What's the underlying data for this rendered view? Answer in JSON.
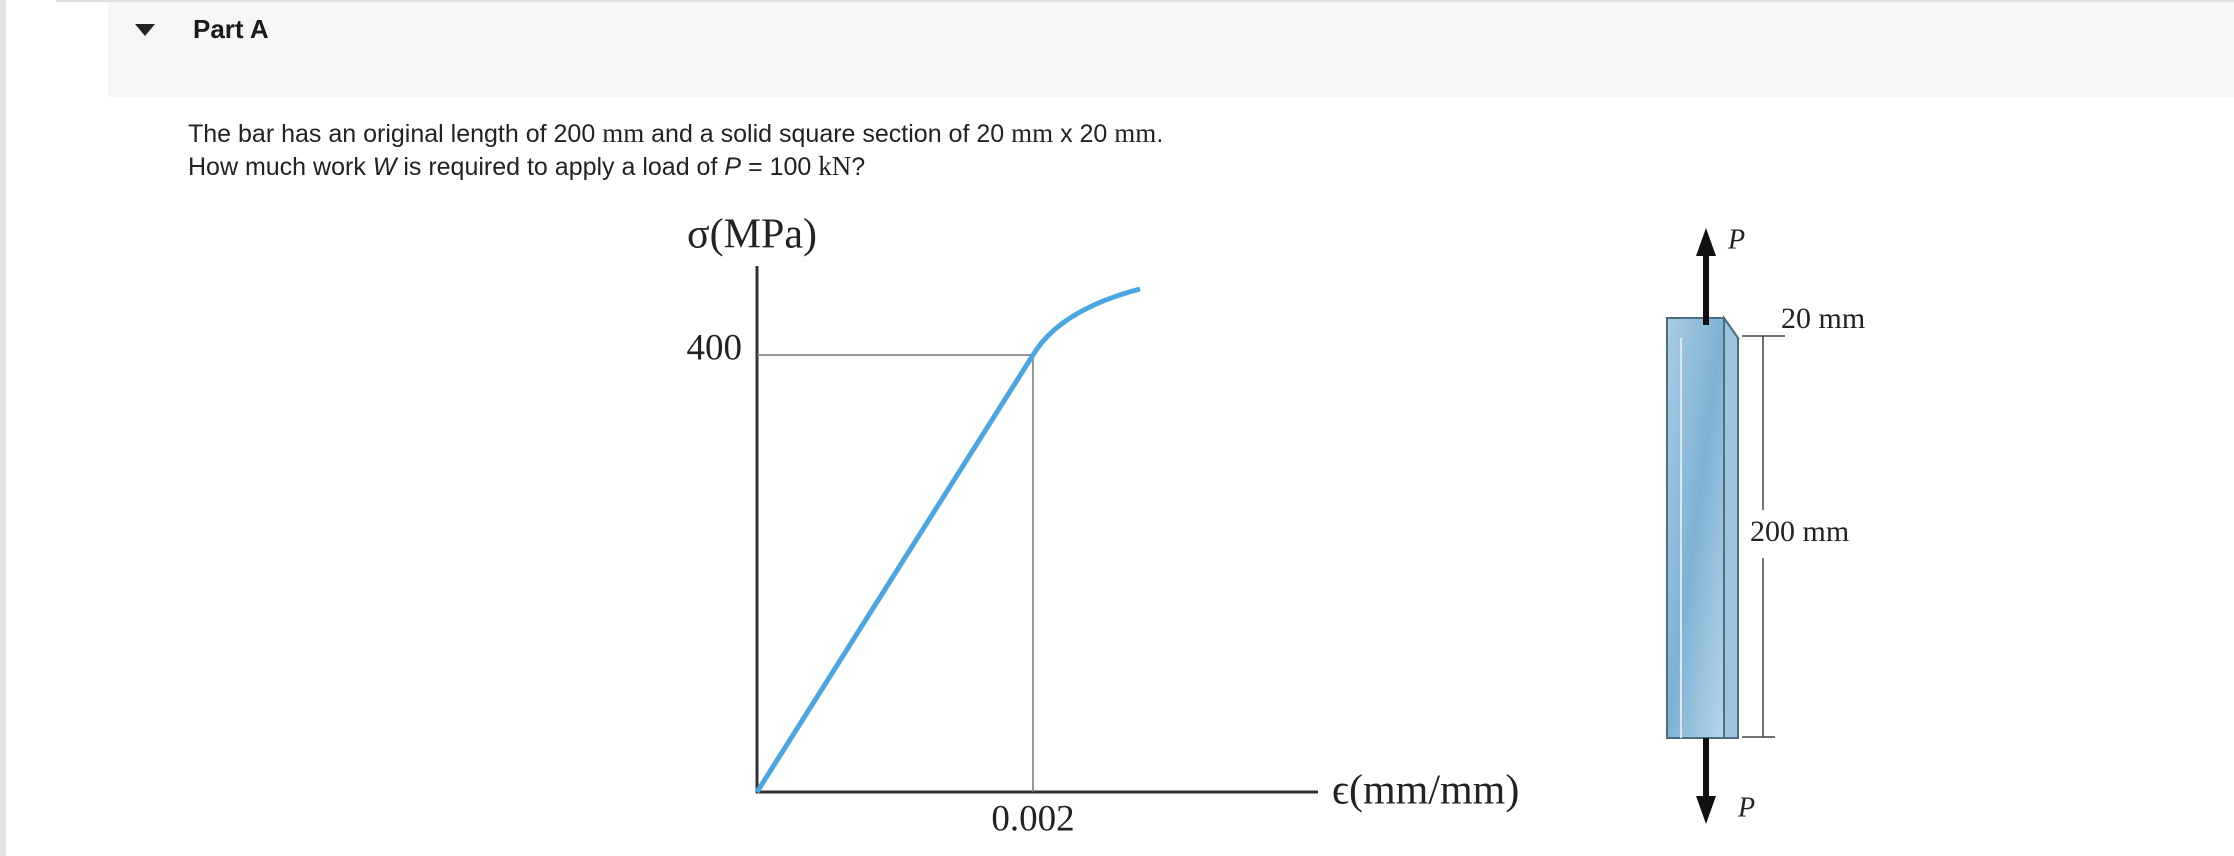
{
  "header": {
    "title": "Part A"
  },
  "problem": {
    "line1": [
      "The bar has an original length of 200 ",
      "mm",
      " and a solid square section of 20 ",
      "mm",
      " x 20 ",
      "mm",
      "."
    ],
    "line2": [
      "How much work ",
      "W",
      " is required to apply a load of ",
      "P",
      " = 100 ",
      "kN",
      "?"
    ]
  },
  "figure": {
    "y_axis_label": "σ(MPa)",
    "x_axis_label": "ϵ(mm/mm)",
    "y_tick": "400",
    "x_tick": "0.002",
    "load_top": "P",
    "load_bottom": "P",
    "width_label": "20 mm",
    "length_label": "200 mm"
  }
}
